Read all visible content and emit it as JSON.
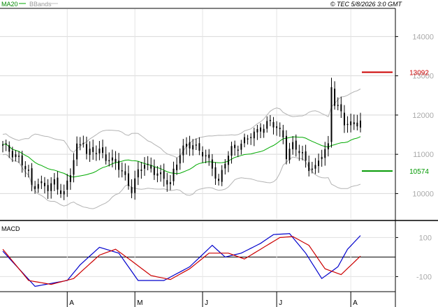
{
  "header": {
    "ma_label": "MA20",
    "bb_label": "BBands",
    "copyright": "© TEC 5/8/2026 3:0 GMT"
  },
  "macd_panel": {
    "label": "MACD"
  },
  "chart_data": [
    {
      "type": "candlestick",
      "title": "",
      "xlabel": "",
      "ylabel": "",
      "ylim": [
        9350,
        14700
      ],
      "y_ticks": [
        10000,
        11000,
        12000,
        13000,
        14000
      ],
      "y_tick_labels": [
        "10000",
        "11000",
        "12000",
        "13000",
        "14000"
      ],
      "x_month_labels": [
        "A",
        "M",
        "J",
        "J",
        "A"
      ],
      "x_month_index": [
        20,
        41,
        62,
        85,
        108
      ],
      "grid": true,
      "num_sessions": 112,
      "legend": "top-left",
      "levels": [
        {
          "name": "resistance",
          "value": 13092,
          "label": "13092",
          "color": "#cc0000"
        },
        {
          "name": "support",
          "value": 10574,
          "label": "10574",
          "color": "#009900"
        }
      ],
      "price_anchors": [
        [
          0,
          11200
        ],
        [
          4,
          11000
        ],
        [
          8,
          10500
        ],
        [
          9,
          10200
        ],
        [
          11,
          10300
        ],
        [
          14,
          10100
        ],
        [
          16,
          10300
        ],
        [
          19,
          10000
        ],
        [
          21,
          10500
        ],
        [
          23,
          11200
        ],
        [
          25,
          11400
        ],
        [
          26,
          11000
        ],
        [
          30,
          11100
        ],
        [
          34,
          10800
        ],
        [
          37,
          10600
        ],
        [
          40,
          10100
        ],
        [
          42,
          10500
        ],
        [
          44,
          10800
        ],
        [
          46,
          10650
        ],
        [
          49,
          10400
        ],
        [
          52,
          10300
        ],
        [
          53,
          10600
        ],
        [
          55,
          11000
        ],
        [
          57,
          11200
        ],
        [
          59,
          11300
        ],
        [
          62,
          11000
        ],
        [
          65,
          10700
        ],
        [
          67,
          10300
        ],
        [
          69,
          10800
        ],
        [
          71,
          11100
        ],
        [
          74,
          11300
        ],
        [
          78,
          11500
        ],
        [
          80,
          11700
        ],
        [
          83,
          11800
        ],
        [
          87,
          11500
        ],
        [
          88,
          11000
        ],
        [
          90,
          11200
        ],
        [
          93,
          11000
        ],
        [
          95,
          10700
        ],
        [
          97,
          10600
        ],
        [
          99,
          11000
        ],
        [
          101,
          11250
        ],
        [
          102,
          12800
        ],
        [
          103,
          12300
        ],
        [
          105,
          12000
        ],
        [
          106,
          11800
        ]
      ],
      "colors": {
        "candles": "#000000",
        "ma20": "#00aa00",
        "bbands": "#b4b4b4"
      }
    },
    {
      "type": "line",
      "title": "",
      "ylim": [
        -170,
        180
      ],
      "y_ticks": [
        100,
        -100
      ],
      "y_tick_labels": [
        "100",
        "-100"
      ],
      "series": [
        {
          "name": "",
          "color": "#0000cc",
          "points": [
            [
              0,
              30
            ],
            [
              10,
              -150
            ],
            [
              20,
              -120
            ],
            [
              24,
              -40
            ],
            [
              30,
              50
            ],
            [
              36,
              20
            ],
            [
              42,
              -120
            ],
            [
              50,
              -120
            ],
            [
              58,
              -50
            ],
            [
              65,
              60
            ],
            [
              69,
              0
            ],
            [
              74,
              20
            ],
            [
              80,
              70
            ],
            [
              84,
              115
            ],
            [
              89,
              120
            ],
            [
              94,
              20
            ],
            [
              99,
              -110
            ],
            [
              104,
              -50
            ],
            [
              107,
              40
            ],
            [
              111,
              110
            ]
          ]
        },
        {
          "name": "",
          "color": "#cc0000",
          "points": [
            [
              0,
              40
            ],
            [
              8,
              -120
            ],
            [
              15,
              -140
            ],
            [
              22,
              -110
            ],
            [
              30,
              10
            ],
            [
              35,
              40
            ],
            [
              40,
              -20
            ],
            [
              46,
              -95
            ],
            [
              52,
              -115
            ],
            [
              58,
              -60
            ],
            [
              64,
              20
            ],
            [
              70,
              20
            ],
            [
              75,
              -10
            ],
            [
              80,
              40
            ],
            [
              86,
              100
            ],
            [
              90,
              105
            ],
            [
              95,
              60
            ],
            [
              100,
              -60
            ],
            [
              105,
              -90
            ],
            [
              111,
              5
            ]
          ]
        }
      ],
      "colors": {
        "zero_line": "#000000"
      }
    }
  ]
}
